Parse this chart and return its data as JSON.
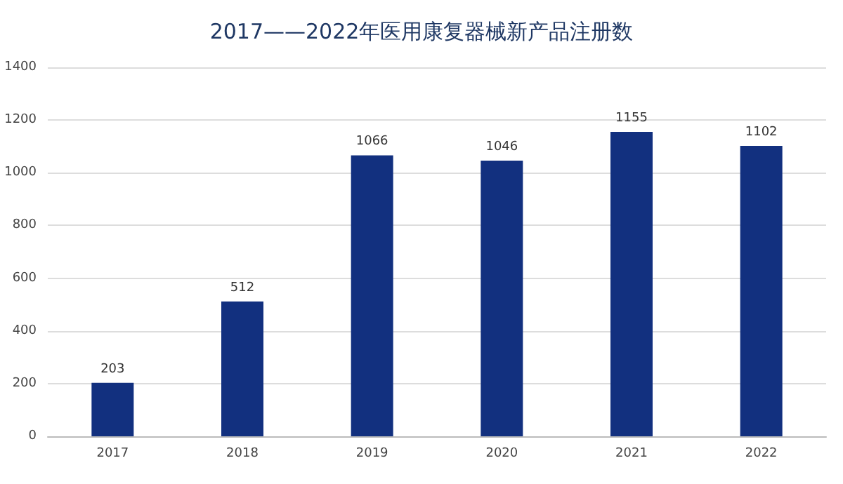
{
  "chart_data": {
    "type": "bar",
    "title": "2017——2022年医用康复器械新产品注册数",
    "categories": [
      "2017",
      "2018",
      "2019",
      "2020",
      "2021",
      "2022"
    ],
    "values": [
      203,
      512,
      1066,
      1046,
      1155,
      1102
    ],
    "color": "#12307f",
    "ylim": [
      0,
      1400
    ],
    "yticks": [
      0,
      200,
      400,
      600,
      800,
      1000,
      1200,
      1400
    ],
    "grid": "y",
    "data_labels": true
  }
}
